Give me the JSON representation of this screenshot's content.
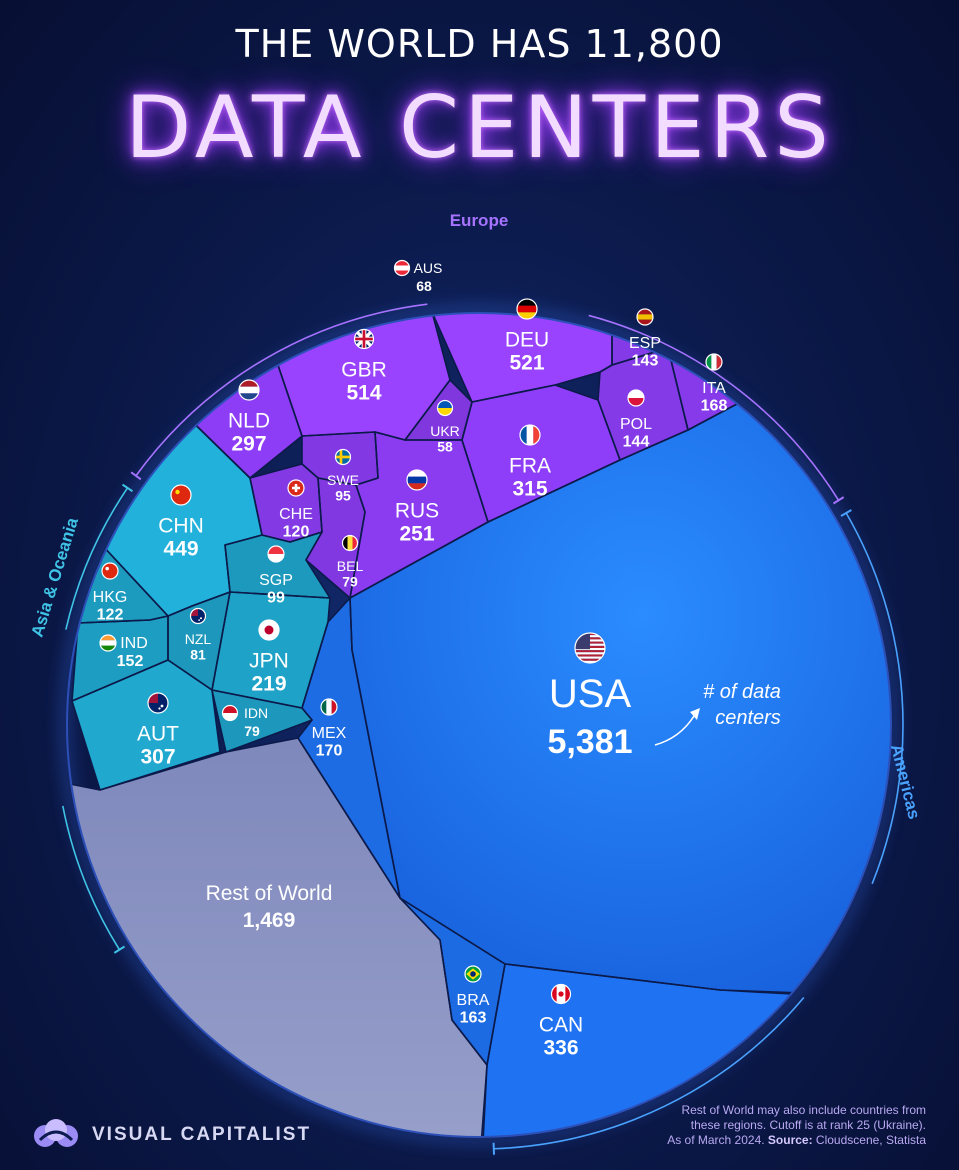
{
  "header": {
    "title_top": "THE WORLD HAS 11,800",
    "title_main": "DATA CENTERS"
  },
  "chart_data": {
    "type": "voronoi treemap",
    "title": "THE WORLD HAS 11,800 DATA CENTERS",
    "total": 11800,
    "annotation": "# of data centers",
    "regions": [
      {
        "name": "Europe",
        "color": "#8a3cf0",
        "countries": [
          {
            "code": "AUS",
            "value": 68,
            "label": "68"
          },
          {
            "code": "DEU",
            "value": 521,
            "label": "521"
          },
          {
            "code": "ESP",
            "value": 143,
            "label": "143"
          },
          {
            "code": "ITA",
            "value": 168,
            "label": "168"
          },
          {
            "code": "GBR",
            "value": 514,
            "label": "514"
          },
          {
            "code": "NLD",
            "value": 297,
            "label": "297"
          },
          {
            "code": "UKR",
            "value": 58,
            "label": "58"
          },
          {
            "code": "POL",
            "value": 144,
            "label": "144"
          },
          {
            "code": "FRA",
            "value": 315,
            "label": "315"
          },
          {
            "code": "SWE",
            "value": 95,
            "label": "95"
          },
          {
            "code": "CHE",
            "value": 120,
            "label": "120"
          },
          {
            "code": "RUS",
            "value": 251,
            "label": "251"
          },
          {
            "code": "BEL",
            "value": 79,
            "label": "79"
          }
        ]
      },
      {
        "name": "Asia & Oceania",
        "color": "#1fa3c9",
        "countries": [
          {
            "code": "CHN",
            "value": 449,
            "label": "449"
          },
          {
            "code": "HKG",
            "value": 122,
            "label": "122"
          },
          {
            "code": "SGP",
            "value": 99,
            "label": "99"
          },
          {
            "code": "NZL",
            "value": 81,
            "label": "81"
          },
          {
            "code": "IND",
            "value": 152,
            "label": "152"
          },
          {
            "code": "JPN",
            "value": 219,
            "label": "219"
          },
          {
            "code": "AUT",
            "value": 307,
            "label": "307"
          },
          {
            "code": "IDN",
            "value": 79,
            "label": "79"
          }
        ]
      },
      {
        "name": "Americas",
        "color": "#1e6fea",
        "countries": [
          {
            "code": "USA",
            "value": 5381,
            "label": "5,381"
          },
          {
            "code": "MEX",
            "value": 170,
            "label": "170"
          },
          {
            "code": "BRA",
            "value": 163,
            "label": "163"
          },
          {
            "code": "CAN",
            "value": 336,
            "label": "336"
          }
        ]
      },
      {
        "name": "",
        "color": "#8a92c0",
        "countries": [
          {
            "code": "Rest of World",
            "value": 1469,
            "label": "1,469"
          }
        ]
      }
    ]
  },
  "footer": {
    "brand": "VISUAL CAPITALIST",
    "note_1": "Rest of World may also include countries from",
    "note_2": "these regions. Cutoff is at rank 25 (Ukraine).",
    "note_3_prefix": "As of March 2024. ",
    "note_3_source_label": "Source:",
    "note_3_source": " Cloudscene, Statista"
  },
  "colors": {
    "background": "#0c1b4e",
    "europe": "#8a3cf0",
    "asia_oceania": "#1fa3c9",
    "americas": "#1e6fea",
    "rest_of_world": "#8a92c0",
    "title_glow": "#a445ff"
  }
}
